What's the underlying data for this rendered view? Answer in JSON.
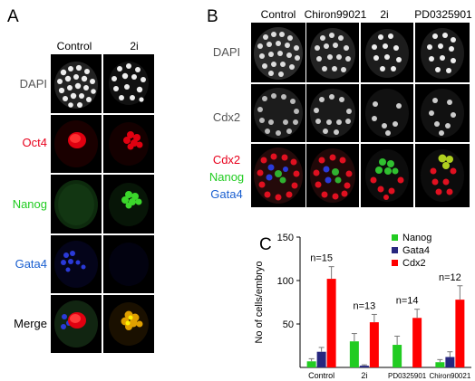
{
  "panelA": {
    "letter": "A",
    "columns": [
      "Control",
      "2i"
    ],
    "rows": [
      {
        "label": "DAPI",
        "color": "#555555"
      },
      {
        "label": "Oct4",
        "color": "#e8001c"
      },
      {
        "label": "Nanog",
        "color": "#22cc22"
      },
      {
        "label": "Gata4",
        "color": "#1a5fd0"
      },
      {
        "label": "Merge",
        "color": "#000000"
      }
    ]
  },
  "panelB": {
    "letter": "B",
    "columns": [
      "Control",
      "Chiron99021",
      "2i",
      "PD0325901"
    ],
    "rows": [
      {
        "label": "DAPI",
        "color": "#555555"
      },
      {
        "label": "Cdx2",
        "color": "#555555"
      }
    ],
    "merge_label": [
      {
        "text": "Cdx2",
        "color": "#e8001c"
      },
      {
        "text": "Nanog",
        "color": "#22cc22"
      },
      {
        "text": "Gata4",
        "color": "#1a5fd0"
      }
    ]
  },
  "panelC": {
    "letter": "C",
    "chart_data": {
      "type": "bar",
      "ylabel": "No of cells/embryo",
      "ylim": [
        0,
        150
      ],
      "yticks": [
        50,
        100,
        150
      ],
      "categories": [
        "Control",
        "2i",
        "PD0325901",
        "Chiron90021"
      ],
      "series": [
        {
          "name": "Nanog",
          "color": "#22cc22",
          "values": [
            7,
            30,
            26,
            6
          ],
          "errors": [
            3,
            9,
            10,
            3
          ]
        },
        {
          "name": "Gata4",
          "color": "#27277f",
          "values": [
            18,
            2,
            0,
            12
          ],
          "errors": [
            5,
            1,
            0,
            6
          ]
        },
        {
          "name": "Cdx2",
          "color": "#ff0000",
          "values": [
            102,
            52,
            57,
            78
          ],
          "errors": [
            14,
            9,
            10,
            16
          ]
        }
      ],
      "annotations": [
        "n=15",
        "n=13",
        "n=14",
        "n=12"
      ],
      "legend": "top-right"
    }
  }
}
